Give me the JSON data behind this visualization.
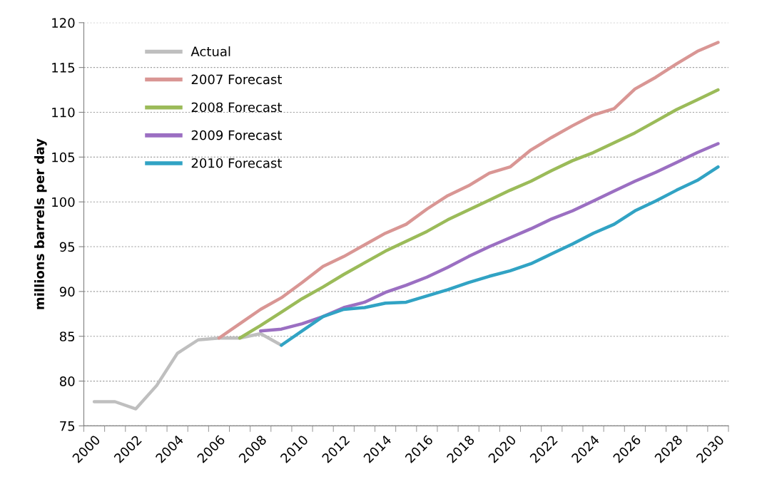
{
  "chart_data": {
    "type": "line",
    "ylabel": "millions barrels per day",
    "categories": [
      "2000",
      null,
      "2002",
      null,
      "2004",
      null,
      "2006",
      null,
      "2008",
      null,
      "2010",
      null,
      "2012",
      null,
      "2014",
      null,
      "2016",
      null,
      "2018",
      null,
      "2020",
      null,
      "2022",
      null,
      "2024",
      null,
      "2026",
      null,
      "2028",
      null,
      "2030"
    ],
    "series": [
      {
        "name": "Actual",
        "color": "#bfbfbf",
        "values": [
          77.7,
          77.7,
          76.9,
          79.5,
          83.1,
          84.6,
          84.8,
          84.8,
          85.3,
          84.0,
          null,
          null,
          null,
          null,
          null,
          null,
          null,
          null,
          null,
          null,
          null,
          null,
          null,
          null,
          null,
          null,
          null,
          null,
          null,
          null,
          null
        ]
      },
      {
        "name": "2007 Forecast",
        "color": "#d99694",
        "values": [
          null,
          null,
          null,
          null,
          null,
          null,
          84.8,
          86.4,
          88.0,
          89.3,
          91.0,
          92.8,
          93.9,
          95.2,
          96.5,
          97.5,
          99.2,
          100.7,
          101.8,
          103.2,
          103.9,
          105.8,
          107.2,
          108.5,
          109.7,
          110.4,
          112.6,
          113.9,
          115.4,
          116.8,
          117.8
        ]
      },
      {
        "name": "2008 Forecast",
        "color": "#9bbb59",
        "values": [
          null,
          null,
          null,
          null,
          null,
          null,
          null,
          84.8,
          86.2,
          87.7,
          89.2,
          90.5,
          91.9,
          93.2,
          94.5,
          95.6,
          96.7,
          98.0,
          99.1,
          100.2,
          101.3,
          102.3,
          103.5,
          104.6,
          105.5,
          106.6,
          107.7,
          109.0,
          110.3,
          111.4,
          112.5
        ]
      },
      {
        "name": "2009 Forecast",
        "color": "#9b6fc2",
        "values": [
          null,
          null,
          null,
          null,
          null,
          null,
          null,
          null,
          85.6,
          85.8,
          86.4,
          87.2,
          88.2,
          88.8,
          89.9,
          90.7,
          91.6,
          92.7,
          93.9,
          95.0,
          96.0,
          97.0,
          98.1,
          99.0,
          100.1,
          101.2,
          102.3,
          103.3,
          104.4,
          105.5,
          106.5
        ]
      },
      {
        "name": "2010 Forecast",
        "color": "#31a3c4",
        "values": [
          null,
          null,
          null,
          null,
          null,
          null,
          null,
          null,
          null,
          84.0,
          85.6,
          87.2,
          88.0,
          88.2,
          88.7,
          88.8,
          89.5,
          90.2,
          91.0,
          91.7,
          92.3,
          93.1,
          94.2,
          95.3,
          96.5,
          97.5,
          99.0,
          100.1,
          101.3,
          102.4,
          103.9
        ]
      }
    ],
    "ylim": [
      75,
      120
    ],
    "yticks": [
      75,
      80,
      85,
      90,
      95,
      100,
      105,
      110,
      115,
      120
    ],
    "grid": "y",
    "legend": "top left",
    "marker": "none",
    "line_style": "solid"
  }
}
